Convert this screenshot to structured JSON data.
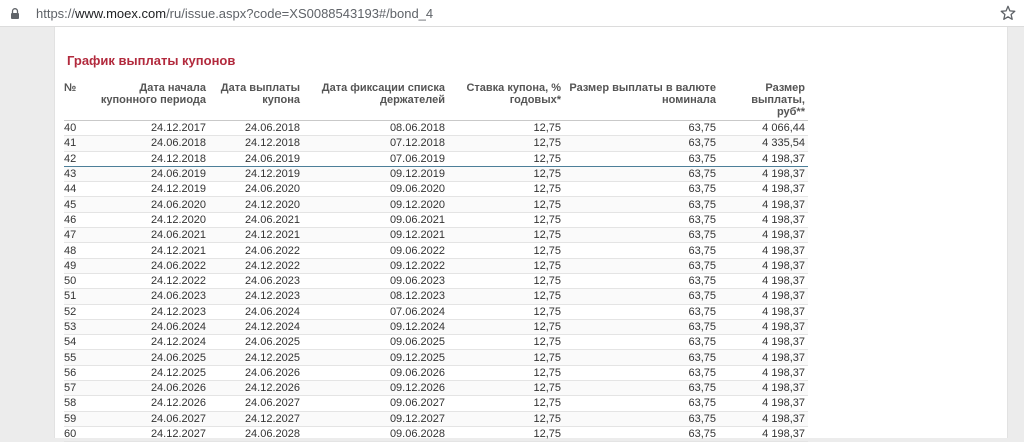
{
  "browser": {
    "url_scheme": "https://",
    "url_host": "www.moex.com",
    "url_path": "/ru/issue.aspx?code=XS0088543193#/bond_4",
    "lock_icon": "lock-icon",
    "star_icon": "bookmark-star-icon"
  },
  "page": {
    "title": "График выплаты купонов",
    "title_color": "#b22a3d"
  },
  "table": {
    "headers": {
      "num": "№",
      "start": "Дата начала купонного периода",
      "pay": "Дата выплаты купона",
      "fix": "Дата фиксации списка держателей",
      "rate": "Ставка купона, % годовых*",
      "val": "Размер выплаты в валюте номинала",
      "rub": "Размер выплаты, руб**"
    },
    "rows": [
      {
        "num": "40",
        "start": "24.12.2017",
        "pay": "24.06.2018",
        "fix": "08.06.2018",
        "rate": "12,75",
        "val": "63,75",
        "rub": "4 066,44"
      },
      {
        "num": "41",
        "start": "24.06.2018",
        "pay": "24.12.2018",
        "fix": "07.12.2018",
        "rate": "12,75",
        "val": "63,75",
        "rub": "4 335,54"
      },
      {
        "num": "42",
        "start": "24.12.2018",
        "pay": "24.06.2019",
        "fix": "07.06.2019",
        "rate": "12,75",
        "val": "63,75",
        "rub": "4 198,37"
      },
      {
        "num": "43",
        "start": "24.06.2019",
        "pay": "24.12.2019",
        "fix": "09.12.2019",
        "rate": "12,75",
        "val": "63,75",
        "rub": "4 198,37"
      },
      {
        "num": "44",
        "start": "24.12.2019",
        "pay": "24.06.2020",
        "fix": "09.06.2020",
        "rate": "12,75",
        "val": "63,75",
        "rub": "4 198,37"
      },
      {
        "num": "45",
        "start": "24.06.2020",
        "pay": "24.12.2020",
        "fix": "09.12.2020",
        "rate": "12,75",
        "val": "63,75",
        "rub": "4 198,37"
      },
      {
        "num": "46",
        "start": "24.12.2020",
        "pay": "24.06.2021",
        "fix": "09.06.2021",
        "rate": "12,75",
        "val": "63,75",
        "rub": "4 198,37"
      },
      {
        "num": "47",
        "start": "24.06.2021",
        "pay": "24.12.2021",
        "fix": "09.12.2021",
        "rate": "12,75",
        "val": "63,75",
        "rub": "4 198,37"
      },
      {
        "num": "48",
        "start": "24.12.2021",
        "pay": "24.06.2022",
        "fix": "09.06.2022",
        "rate": "12,75",
        "val": "63,75",
        "rub": "4 198,37"
      },
      {
        "num": "49",
        "start": "24.06.2022",
        "pay": "24.12.2022",
        "fix": "09.12.2022",
        "rate": "12,75",
        "val": "63,75",
        "rub": "4 198,37"
      },
      {
        "num": "50",
        "start": "24.12.2022",
        "pay": "24.06.2023",
        "fix": "09.06.2023",
        "rate": "12,75",
        "val": "63,75",
        "rub": "4 198,37"
      },
      {
        "num": "51",
        "start": "24.06.2023",
        "pay": "24.12.2023",
        "fix": "08.12.2023",
        "rate": "12,75",
        "val": "63,75",
        "rub": "4 198,37"
      },
      {
        "num": "52",
        "start": "24.12.2023",
        "pay": "24.06.2024",
        "fix": "07.06.2024",
        "rate": "12,75",
        "val": "63,75",
        "rub": "4 198,37"
      },
      {
        "num": "53",
        "start": "24.06.2024",
        "pay": "24.12.2024",
        "fix": "09.12.2024",
        "rate": "12,75",
        "val": "63,75",
        "rub": "4 198,37"
      },
      {
        "num": "54",
        "start": "24.12.2024",
        "pay": "24.06.2025",
        "fix": "09.06.2025",
        "rate": "12,75",
        "val": "63,75",
        "rub": "4 198,37"
      },
      {
        "num": "55",
        "start": "24.06.2025",
        "pay": "24.12.2025",
        "fix": "09.12.2025",
        "rate": "12,75",
        "val": "63,75",
        "rub": "4 198,37"
      },
      {
        "num": "56",
        "start": "24.12.2025",
        "pay": "24.06.2026",
        "fix": "09.06.2026",
        "rate": "12,75",
        "val": "63,75",
        "rub": "4 198,37"
      },
      {
        "num": "57",
        "start": "24.06.2026",
        "pay": "24.12.2026",
        "fix": "09.12.2026",
        "rate": "12,75",
        "val": "63,75",
        "rub": "4 198,37"
      },
      {
        "num": "58",
        "start": "24.12.2026",
        "pay": "24.06.2027",
        "fix": "09.06.2027",
        "rate": "12,75",
        "val": "63,75",
        "rub": "4 198,37"
      },
      {
        "num": "59",
        "start": "24.06.2027",
        "pay": "24.12.2027",
        "fix": "09.12.2027",
        "rate": "12,75",
        "val": "63,75",
        "rub": "4 198,37"
      },
      {
        "num": "60",
        "start": "24.12.2027",
        "pay": "24.06.2028",
        "fix": "09.06.2028",
        "rate": "12,75",
        "val": "63,75",
        "rub": "4 198,37"
      }
    ],
    "highlighted_row": "42"
  }
}
